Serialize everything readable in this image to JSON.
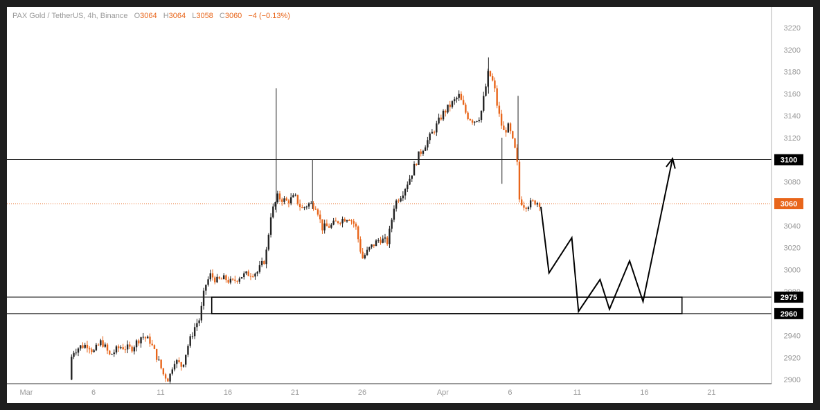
{
  "header": {
    "symbol": "PAX Gold / TetherUS, 4h, Binance",
    "o_label": "O",
    "o_value": "3064",
    "h_label": "H",
    "h_value": "3064",
    "l_label": "L",
    "l_value": "3058",
    "c_label": "C",
    "c_value": "3060",
    "change": "−4 (−0.13%)"
  },
  "colors": {
    "up": "#222222",
    "down": "#e8651a",
    "price_line": "#e8651a",
    "level": "#000000",
    "tag_bg": "#000000",
    "tag_text": "#ffffff",
    "current_tag_bg": "#e8651a"
  },
  "chart_data": {
    "type": "candlestick",
    "title": "PAX Gold / TetherUS, 4h, Binance",
    "timeframe": "4h",
    "ylim": [
      2895,
      3230
    ],
    "y_ticks": [
      2900,
      2920,
      2940,
      2960,
      2980,
      3000,
      3020,
      3040,
      3060,
      3080,
      3100,
      3120,
      3140,
      3160,
      3180,
      3200,
      3220
    ],
    "x_range_days": [
      0,
      53
    ],
    "x_ticks": [
      {
        "label": "Mar",
        "day": 0
      },
      {
        "label": "6",
        "day": 5
      },
      {
        "label": "11",
        "day": 10
      },
      {
        "label": "16",
        "day": 15
      },
      {
        "label": "21",
        "day": 20
      },
      {
        "label": "26",
        "day": 25
      },
      {
        "label": "Apr",
        "day": 31
      },
      {
        "label": "6",
        "day": 36
      },
      {
        "label": "11",
        "day": 41
      },
      {
        "label": "16",
        "day": 46
      },
      {
        "label": "21",
        "day": 51
      }
    ],
    "price_path": [
      [
        3.2,
        2900
      ],
      [
        3.4,
        2925
      ],
      [
        4.0,
        2930
      ],
      [
        4.6,
        2932
      ],
      [
        5.0,
        2925
      ],
      [
        5.6,
        2935
      ],
      [
        6.2,
        2922
      ],
      [
        7.0,
        2930
      ],
      [
        7.8,
        2928
      ],
      [
        8.6,
        2940
      ],
      [
        9.2,
        2935
      ],
      [
        9.8,
        2918
      ],
      [
        10.2,
        2905
      ],
      [
        10.6,
        2900
      ],
      [
        11.0,
        2918
      ],
      [
        11.6,
        2912
      ],
      [
        12.0,
        2930
      ],
      [
        12.6,
        2950
      ],
      [
        12.9,
        2955
      ],
      [
        13.3,
        2985
      ],
      [
        13.7,
        2995
      ],
      [
        14.2,
        2990
      ],
      [
        14.8,
        2992
      ],
      [
        15.3,
        2988
      ],
      [
        15.9,
        2994
      ],
      [
        16.5,
        2996
      ],
      [
        17.2,
        2998
      ],
      [
        17.8,
        3010
      ],
      [
        18.2,
        3050
      ],
      [
        18.7,
        3066
      ],
      [
        19.4,
        3062
      ],
      [
        20.0,
        3066
      ],
      [
        20.5,
        3055
      ],
      [
        21.0,
        3060
      ],
      [
        21.6,
        3058
      ],
      [
        22.0,
        3038
      ],
      [
        22.7,
        3040
      ],
      [
        23.3,
        3045
      ],
      [
        24.0,
        3048
      ],
      [
        24.5,
        3040
      ],
      [
        25.0,
        3010
      ],
      [
        25.6,
        3020
      ],
      [
        26.3,
        3028
      ],
      [
        26.9,
        3025
      ],
      [
        27.4,
        3060
      ],
      [
        28.0,
        3070
      ],
      [
        28.6,
        3085
      ],
      [
        29.2,
        3104
      ],
      [
        29.8,
        3116
      ],
      [
        30.4,
        3128
      ],
      [
        31.0,
        3142
      ],
      [
        31.6,
        3150
      ],
      [
        32.2,
        3158
      ],
      [
        32.8,
        3140
      ],
      [
        33.3,
        3135
      ],
      [
        33.8,
        3140
      ],
      [
        34.4,
        3180
      ],
      [
        34.8,
        3168
      ],
      [
        35.1,
        3145
      ],
      [
        35.5,
        3125
      ],
      [
        35.9,
        3130
      ],
      [
        36.3,
        3112
      ],
      [
        36.5,
        3102
      ],
      [
        36.7,
        3064
      ],
      [
        37.1,
        3058
      ],
      [
        37.5,
        3060
      ],
      [
        37.9,
        3062
      ],
      [
        38.3,
        3060
      ]
    ],
    "spikes": [
      {
        "day": 18.6,
        "low": 3052,
        "high": 3165
      },
      {
        "day": 21.3,
        "low": 3055,
        "high": 3100
      },
      {
        "day": 34.4,
        "low": 3160,
        "high": 3193
      },
      {
        "day": 35.4,
        "low": 3078,
        "high": 3120
      },
      {
        "day": 36.6,
        "low": 3100,
        "high": 3158
      }
    ],
    "levels": [
      {
        "price": 3100,
        "label": "3100"
      },
      {
        "price": 2975,
        "label": "2975"
      },
      {
        "price": 2960,
        "label": "2960"
      }
    ],
    "current_price": {
      "price": 3060,
      "label": "3060"
    },
    "zone": {
      "low": 2960,
      "high": 2975,
      "from_day": 13.8,
      "to_day": 48.8
    },
    "projection_path": [
      [
        38.3,
        3057
      ],
      [
        38.9,
        2997
      ],
      [
        40.6,
        3029
      ],
      [
        41.1,
        2962
      ],
      [
        42.7,
        2991
      ],
      [
        43.4,
        2964
      ],
      [
        44.9,
        3008
      ],
      [
        45.9,
        2971
      ],
      [
        48.1,
        3101
      ]
    ]
  }
}
